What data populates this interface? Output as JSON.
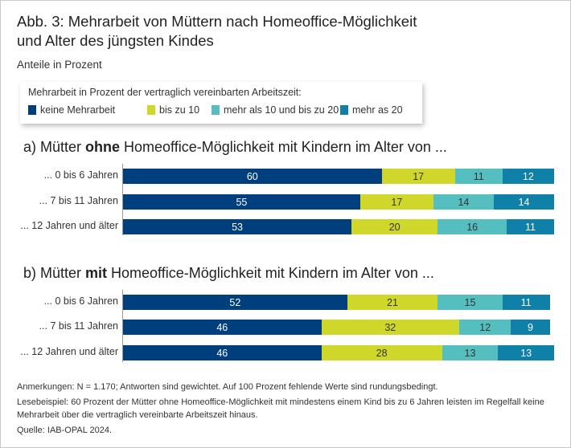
{
  "title_line1": "Abb. 3: Mehrarbeit von Müttern nach Homeoffice-Möglichkeit",
  "title_line2": "und Alter des jüngsten Kindes",
  "subtitle": "Anteile in Prozent",
  "legend": {
    "title": "Mehrarbeit in Prozent der vertraglich vereinbarten Arbeitszeit:",
    "items": [
      {
        "label": "keine Mehrarbeit",
        "color": "#003f7d"
      },
      {
        "label": "bis zu 10",
        "color": "#cfd82a"
      },
      {
        "label": "mehr als 10 und bis zu 20",
        "color": "#55bfc0"
      },
      {
        "label": "mehr as 20",
        "color": "#0f80a8"
      }
    ]
  },
  "chart_data": [
    {
      "type": "bar",
      "orientation": "horizontal",
      "stacked": true,
      "title_parts": [
        "a) Mütter ",
        "ohne",
        " Homeoffice-Möglichkeit mit Kindern im Alter von ..."
      ],
      "categories": [
        "... 0 bis 6 Jahren",
        "... 7 bis 11 Jahren",
        "... 12 Jahren und älter"
      ],
      "xlim": [
        0,
        100
      ],
      "series": [
        {
          "name": "keine Mehrarbeit",
          "values": [
            60,
            55,
            53
          ]
        },
        {
          "name": "bis zu 10",
          "values": [
            17,
            17,
            20
          ]
        },
        {
          "name": "mehr als 10 und bis zu 20",
          "values": [
            11,
            14,
            16
          ]
        },
        {
          "name": "mehr as 20",
          "values": [
            12,
            14,
            11
          ]
        }
      ]
    },
    {
      "type": "bar",
      "orientation": "horizontal",
      "stacked": true,
      "title_parts": [
        "b) Mütter ",
        "mit",
        " Homeoffice-Möglichkeit mit Kindern im Alter von ..."
      ],
      "categories": [
        "... 0 bis 6 Jahren",
        "... 7 bis 11 Jahren",
        "... 12 Jahren und älter"
      ],
      "xlim": [
        0,
        100
      ],
      "series": [
        {
          "name": "keine Mehrarbeit",
          "values": [
            52,
            46,
            46
          ]
        },
        {
          "name": "bis zu 10",
          "values": [
            21,
            32,
            28
          ]
        },
        {
          "name": "mehr als 10 und bis zu 20",
          "values": [
            15,
            12,
            13
          ]
        },
        {
          "name": "mehr as 20",
          "values": [
            11,
            9,
            13
          ]
        }
      ]
    }
  ],
  "label_text_colors": [
    "#ffffff",
    "#333333",
    "#333333",
    "#ffffff"
  ],
  "notes": {
    "anmerkungen": "Anmerkungen: N = 1.170; Antworten sind gewichtet. Auf 100 Prozent fehlende Werte sind rundungsbedingt.",
    "lesebeispiel": "Lesebeispiel: 60 Prozent der Mütter ohne Homeoffice-Möglichkeit mit mindestens einem Kind bis zu 6 Jahren leisten im Regelfall keine Mehrarbeit über die vertraglich vereinbarte Arbeitszeit hinaus.",
    "quelle": "Quelle: IAB-OPAL 2024."
  }
}
